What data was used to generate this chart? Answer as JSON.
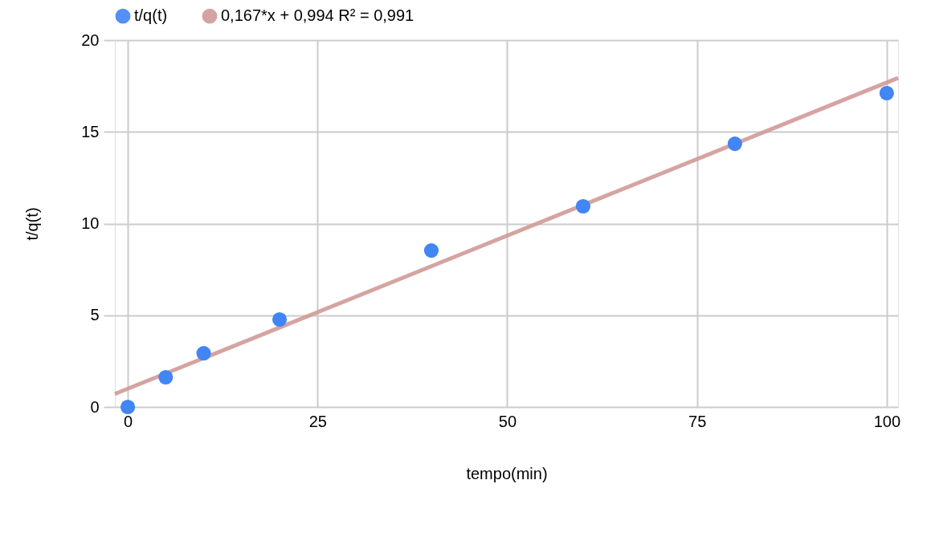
{
  "chart_data": {
    "type": "scatter",
    "xlabel": "tempo(min)",
    "ylabel": "t/q(t)",
    "xlim": [
      -1.7,
      101.5
    ],
    "xticks": [
      0,
      25,
      50,
      75,
      100
    ],
    "ylim": [
      0,
      20
    ],
    "yticks": [
      0,
      5,
      10,
      15,
      20
    ],
    "grid": true,
    "legend": "top",
    "marker": "circle",
    "series": [
      {
        "name": "t/q(t)",
        "color": "#4285f4",
        "x": [
          0,
          5,
          10,
          20,
          40,
          60,
          80,
          100
        ],
        "values": [
          0,
          1.62,
          2.93,
          4.77,
          8.53,
          10.94,
          14.35,
          17.11
        ]
      },
      {
        "name": "0,167*x + 0,994 R² = 0,991",
        "type": "line",
        "marker": "none",
        "color": "#d09a98",
        "x": [
          -1.7,
          101.5
        ],
        "values": [
          0.71,
          17.94
        ]
      }
    ]
  }
}
